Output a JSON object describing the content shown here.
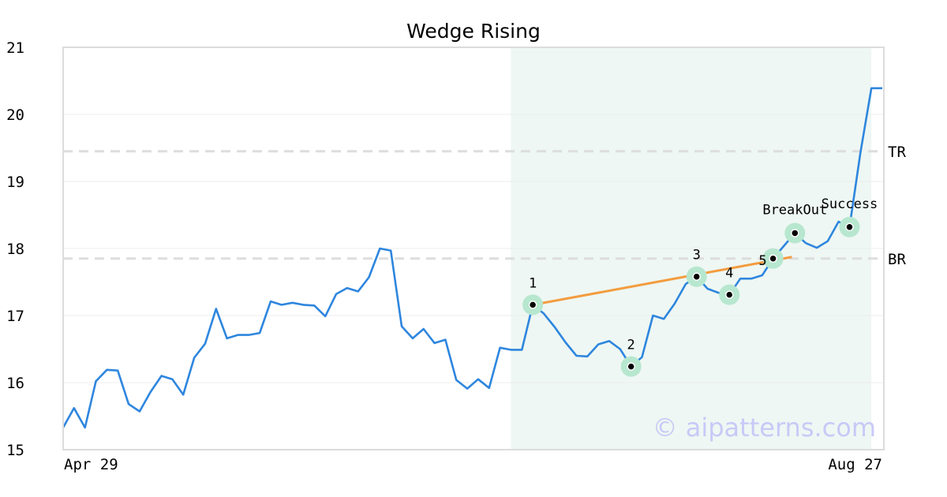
{
  "chart_data": {
    "type": "line",
    "title": "Wedge Rising",
    "ylim": [
      15,
      21
    ],
    "y_ticks": [
      "15",
      "16",
      "17",
      "18",
      "19",
      "20",
      "21"
    ],
    "x_labels": {
      "start": "Apr 29",
      "end": "Aug 27"
    },
    "series": [
      {
        "values": [
          15.33,
          15.62,
          15.33,
          16.02,
          16.19,
          16.18,
          15.68,
          15.57,
          15.86,
          16.1,
          16.05,
          15.82,
          16.37,
          16.58,
          17.1,
          16.66,
          16.71,
          16.71,
          16.74,
          17.21,
          17.16,
          17.19,
          17.16,
          17.15,
          16.99,
          17.32,
          17.41,
          17.36,
          17.57,
          18.0,
          17.97,
          16.84,
          16.66,
          16.8,
          16.59,
          16.64,
          16.04,
          15.91,
          16.05,
          15.92,
          16.52,
          16.49,
          16.49,
          17.16,
          17.03,
          16.83,
          16.6,
          16.4,
          16.39,
          16.57,
          16.62,
          16.5,
          16.24,
          16.38,
          17.0,
          16.95,
          17.18,
          17.47,
          17.58,
          17.4,
          17.34,
          17.31,
          17.55,
          17.55,
          17.6,
          17.85,
          18.04,
          18.23,
          18.08,
          18.01,
          18.11,
          18.4,
          18.32,
          19.43,
          20.39,
          20.39
        ]
      }
    ],
    "highlight_range": [
      41,
      74
    ],
    "levels": [
      {
        "label": "TR",
        "value": 19.45
      },
      {
        "label": "BR",
        "value": 17.85
      }
    ],
    "trendline": {
      "from": [
        43,
        17.16
      ],
      "to": [
        66,
        17.85
      ]
    },
    "points": [
      {
        "label": "1",
        "index": 43,
        "value": 17.16
      },
      {
        "label": "2",
        "index": 52,
        "value": 16.24
      },
      {
        "label": "3",
        "index": 58,
        "value": 17.58
      },
      {
        "label": "4",
        "index": 61,
        "value": 17.31
      },
      {
        "label": "5",
        "index": 65,
        "value": 17.85
      },
      {
        "label": "BreakOut",
        "index": 67,
        "value": 18.23
      },
      {
        "label": "Success",
        "index": 72,
        "value": 18.32
      }
    ],
    "colors": {
      "line": "#2e86de",
      "trendline": "#f39c3f",
      "highlight": "#eef7f3",
      "marker_halo": "#b7e7cf",
      "level": "#dddddd"
    }
  },
  "watermark": "© aipatterns.com"
}
